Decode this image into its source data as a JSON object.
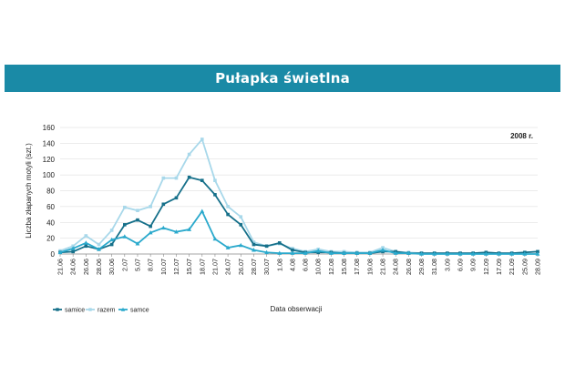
{
  "header": {
    "title": "Pułapka świetlna"
  },
  "chart_data": {
    "type": "line",
    "title": "Pułapka świetlna",
    "annotation": "2008 r.",
    "xlabel": "Data obserwacji",
    "ylabel": "Liczba złapanych motyli (szt.)",
    "ylim": [
      0,
      160
    ],
    "yticks": [
      0,
      20,
      40,
      60,
      80,
      100,
      120,
      140,
      160
    ],
    "grid": "horizontal",
    "legend_position": "bottom-left",
    "categories": [
      "21.06",
      "24.06",
      "26.06",
      "28.06",
      "30.06",
      "2.07",
      "5.07",
      "8.07",
      "10.07",
      "12.07",
      "15.07",
      "18.07",
      "21.07",
      "24.07",
      "26.07",
      "28.07",
      "30.07",
      "1.08",
      "4.08",
      "6.08",
      "10.08",
      "12.08",
      "15.08",
      "17.08",
      "19.08",
      "21.08",
      "24.08",
      "26.08",
      "29.08",
      "31.08",
      "3.09",
      "6.09",
      "9.09",
      "12.09",
      "17.09",
      "21.09",
      "25.09",
      "28.09"
    ],
    "series": [
      {
        "name": "samice",
        "color": "#16708a",
        "marker": "square",
        "values": [
          2,
          3,
          10,
          6,
          12,
          37,
          43,
          35,
          63,
          71,
          97,
          93,
          75,
          50,
          37,
          12,
          10,
          14,
          5,
          2,
          2,
          2,
          1,
          1,
          1,
          3,
          3,
          1,
          1,
          1,
          1,
          1,
          1,
          2,
          1,
          1,
          2,
          3
        ]
      },
      {
        "name": "razem",
        "color": "#a8d8ea",
        "marker": "square",
        "values": [
          4,
          10,
          23,
          12,
          30,
          59,
          55,
          60,
          96,
          96,
          126,
          145,
          93,
          60,
          47,
          15,
          10,
          13,
          7,
          3,
          6,
          3,
          3,
          2,
          2,
          8,
          3,
          2,
          1,
          1,
          1,
          1,
          1,
          2,
          1,
          1,
          2,
          3
        ]
      },
      {
        "name": "samce",
        "color": "#2aa9cc",
        "marker": "triangle",
        "values": [
          2,
          7,
          14,
          6,
          18,
          22,
          13,
          27,
          33,
          28,
          31,
          54,
          19,
          8,
          11,
          5,
          2,
          1,
          1,
          1,
          4,
          1,
          1,
          1,
          1,
          5,
          1,
          1,
          0,
          0,
          0,
          0,
          0,
          0,
          0,
          0,
          0,
          0
        ]
      }
    ]
  }
}
